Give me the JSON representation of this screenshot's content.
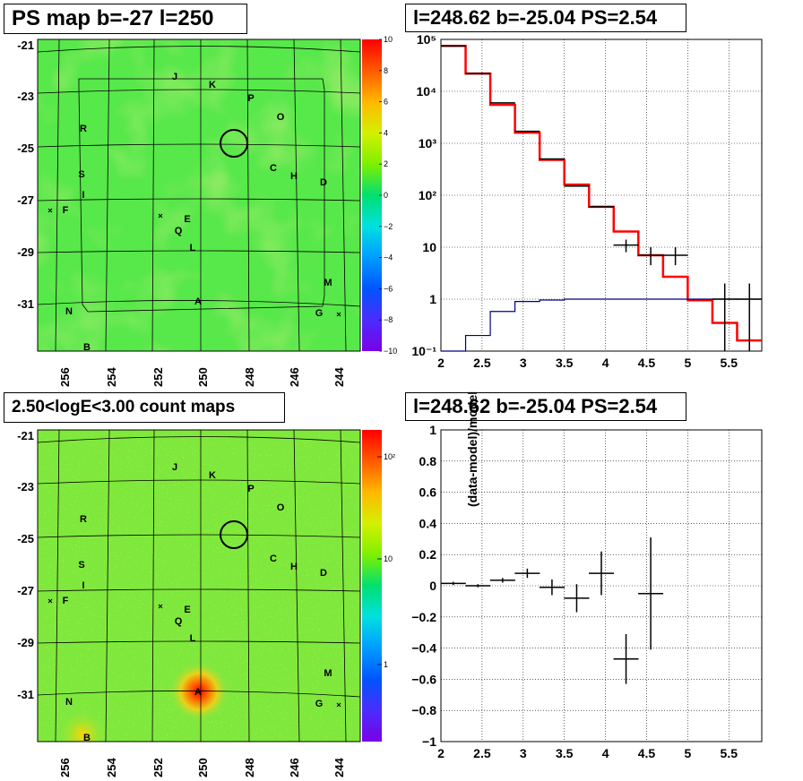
{
  "titles": {
    "map_top": "PS map b=-27 l=250",
    "map_bottom": "2.50<logE<3.00 count maps",
    "spectrum": "l=248.62 b=-25.04 PS=2.54",
    "residual": "l=248.62 b=-25.04 PS=2.54"
  },
  "map_axes": {
    "y_ticks": [
      "-21",
      "-23",
      "-25",
      "-27",
      "-29",
      "-31"
    ],
    "x_ticks": [
      "256",
      "254",
      "252",
      "250",
      "248",
      "246",
      "244"
    ]
  },
  "map_sources": [
    {
      "label": "J"
    },
    {
      "label": "K"
    },
    {
      "label": "P"
    },
    {
      "label": "O"
    },
    {
      "label": "R"
    },
    {
      "label": "C"
    },
    {
      "label": "H"
    },
    {
      "label": "D"
    },
    {
      "label": "S"
    },
    {
      "label": "I"
    },
    {
      "label": "F"
    },
    {
      "label": "E"
    },
    {
      "label": "Q"
    },
    {
      "label": "L"
    },
    {
      "label": "M"
    },
    {
      "label": "A"
    },
    {
      "label": "N"
    },
    {
      "label": "G"
    },
    {
      "label": "B"
    }
  ],
  "colorbar_top": {
    "ticks": [
      "10",
      "8",
      "6",
      "4",
      "2",
      "0",
      "−2",
      "−4",
      "−6",
      "−8",
      "−10"
    ]
  },
  "colorbar_bottom": {
    "ticks": [
      "10²",
      "10",
      "1"
    ]
  },
  "chart_data": [
    {
      "type": "heatmap",
      "title": "PS map b=-27 l=250",
      "x_ticks": [
        256,
        254,
        252,
        250,
        248,
        246,
        244
      ],
      "y_ticks": [
        -21,
        -23,
        -25,
        -27,
        -29,
        -31
      ],
      "colorbar_range": [
        -10,
        10
      ]
    },
    {
      "type": "heatmap",
      "title": "2.50<logE<3.00 count maps",
      "x_ticks": [
        256,
        254,
        252,
        250,
        248,
        246,
        244
      ],
      "y_ticks": [
        -21,
        -23,
        -25,
        -27,
        -29,
        -31
      ],
      "colorbar_scale": "log"
    },
    {
      "type": "line",
      "title": "l=248.62 b=-25.04 PS=2.54",
      "xlim": [
        2,
        5.9
      ],
      "ylim": [
        0.1,
        100000
      ],
      "yscale": "log",
      "x_tick_labels": [
        "2",
        "2.5",
        "3",
        "3.5",
        "4",
        "4.5",
        "5",
        "5.5"
      ],
      "y_tick_labels": [
        "10⁻¹",
        "1",
        "10",
        "10²",
        "10³",
        "10⁴",
        "10⁵"
      ],
      "bin_edges": [
        2,
        2.3,
        2.6,
        2.9,
        3.2,
        3.5,
        3.8,
        4.1,
        4.4,
        4.7,
        5.0,
        5.3,
        5.6,
        5.9
      ],
      "series": [
        {
          "color": "#ff0000",
          "values": [
            75000,
            22000,
            5500,
            1600,
            480,
            160,
            60,
            20,
            7,
            2.7,
            0.95,
            0.35,
            0.16
          ]
        },
        {
          "color": "#000080",
          "values": [
            0.08,
            0.2,
            0.58,
            0.9,
            0.96,
            1,
            1,
            1,
            1,
            1,
            1,
            1,
            1
          ]
        }
      ],
      "points": [
        {
          "x": 2.15,
          "y": 75000
        },
        {
          "x": 2.45,
          "y": 22000
        },
        {
          "x": 2.75,
          "y": 6000
        },
        {
          "x": 3.05,
          "y": 1700
        },
        {
          "x": 3.35,
          "y": 500
        },
        {
          "x": 3.65,
          "y": 150
        },
        {
          "x": 3.95,
          "y": 60
        },
        {
          "x": 4.25,
          "y": 11,
          "lo": 8,
          "hi": 14
        },
        {
          "x": 4.55,
          "y": 7,
          "lo": 4.5,
          "hi": 10
        },
        {
          "x": 4.85,
          "y": 7,
          "lo": 4.5,
          "hi": 10
        },
        {
          "x": 5.45,
          "y": 1,
          "lo": 0.1,
          "hi": 2
        },
        {
          "x": 5.75,
          "y": 1,
          "lo": 0.1,
          "hi": 2
        }
      ]
    },
    {
      "type": "scatter",
      "title": "l=248.62 b=-25.04 PS=2.54",
      "ylabel": "(data-model)/model",
      "xlim": [
        2,
        5.9
      ],
      "ylim": [
        -1,
        1
      ],
      "x_tick_labels": [
        "2",
        "2.5",
        "3",
        "3.5",
        "4",
        "4.5",
        "5",
        "5.5"
      ],
      "y_tick_labels": [
        "1",
        "0.8",
        "0.6",
        "0.4",
        "0.2",
        "0",
        "−0.2",
        "−0.4",
        "−0.6",
        "−0.8",
        "−1"
      ],
      "points": [
        {
          "x": 2.15,
          "y": 0.015,
          "err": 0.01
        },
        {
          "x": 2.45,
          "y": 0.0,
          "err": 0.01
        },
        {
          "x": 2.75,
          "y": 0.035,
          "err": 0.015
        },
        {
          "x": 3.05,
          "y": 0.08,
          "err": 0.03
        },
        {
          "x": 3.35,
          "y": -0.01,
          "err": 0.05
        },
        {
          "x": 3.65,
          "y": -0.08,
          "err": 0.09
        },
        {
          "x": 3.95,
          "y": 0.08,
          "err": 0.14
        },
        {
          "x": 4.25,
          "y": -0.47,
          "err": 0.16
        },
        {
          "x": 4.55,
          "y": -0.05,
          "err": 0.36
        }
      ]
    }
  ]
}
